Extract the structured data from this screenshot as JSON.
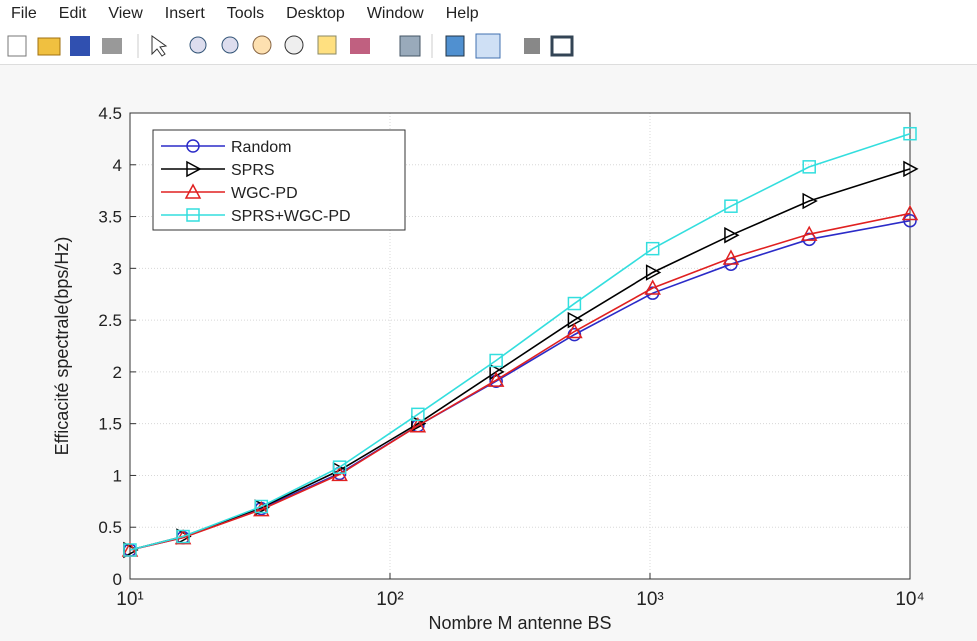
{
  "menu": [
    "File",
    "Edit",
    "View",
    "Insert",
    "Tools",
    "Desktop",
    "Window",
    "Help"
  ],
  "chart_data": {
    "type": "line",
    "x_label": "Nombre M antenne BS",
    "y_label": "Efficacité spectrale(bps/Hz)",
    "x": [
      10,
      16,
      32,
      64,
      128,
      256,
      512,
      1024,
      2048,
      4096,
      10000
    ],
    "x_scale": "log",
    "xlim": [
      10,
      10000
    ],
    "xticks": [
      {
        "value": 10,
        "label": "10¹"
      },
      {
        "value": 100,
        "label": "10²"
      },
      {
        "value": 1000,
        "label": "10³"
      },
      {
        "value": 10000,
        "label": "10⁴"
      }
    ],
    "ylim": [
      0,
      4.5
    ],
    "yticks": [
      0,
      0.5,
      1,
      1.5,
      2,
      2.5,
      3,
      3.5,
      4,
      4.5
    ],
    "grid": true,
    "legend": "upper left",
    "series": [
      {
        "name": "Random",
        "color": "#2b2bc8",
        "marker": "circle",
        "values": [
          0.28,
          0.4,
          0.68,
          1.02,
          1.48,
          1.91,
          2.36,
          2.76,
          3.04,
          3.28,
          3.46
        ]
      },
      {
        "name": "SPRS",
        "color": "#000000",
        "marker": "triangle-right",
        "values": [
          0.28,
          0.41,
          0.69,
          1.05,
          1.5,
          2.0,
          2.5,
          2.96,
          3.32,
          3.65,
          3.96
        ]
      },
      {
        "name": "WGC-PD",
        "color": "#e02020",
        "marker": "triangle-up",
        "values": [
          0.28,
          0.4,
          0.67,
          1.01,
          1.48,
          1.92,
          2.39,
          2.81,
          3.1,
          3.33,
          3.53
        ]
      },
      {
        "name": "SPRS+WGC-PD",
        "color": "#33dede",
        "marker": "square",
        "values": [
          0.28,
          0.41,
          0.7,
          1.08,
          1.59,
          2.11,
          2.66,
          3.19,
          3.6,
          3.98,
          4.3
        ]
      }
    ]
  }
}
